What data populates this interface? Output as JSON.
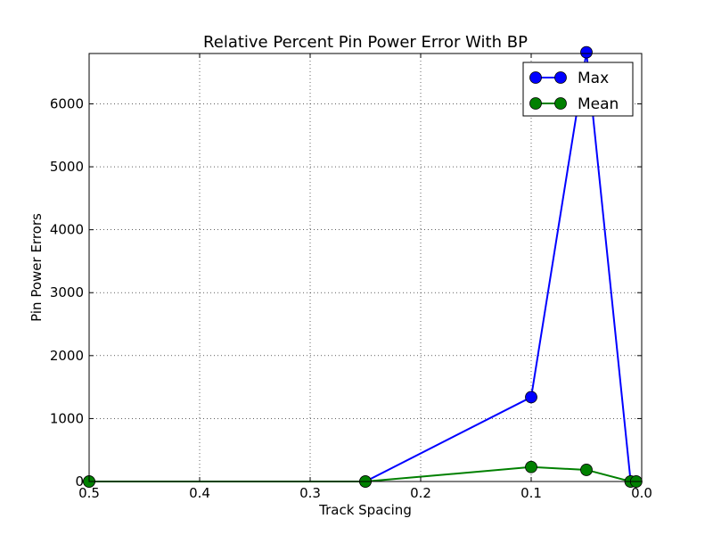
{
  "chart_data": {
    "type": "line",
    "title": "Relative Percent Pin Power Error With BP",
    "xlabel": "Track Spacing",
    "ylabel": "Pin Power Errors",
    "xlim": [
      0.5,
      0.0
    ],
    "ylim": [
      0,
      6800
    ],
    "x_inverted": true,
    "grid": true,
    "legend_position": "top-right",
    "xticks": [
      0.5,
      0.4,
      0.3,
      0.2,
      0.1,
      0.0
    ],
    "xtick_labels": [
      "0.5",
      "0.4",
      "0.3",
      "0.2",
      "0.1",
      "0.0"
    ],
    "yticks": [
      0,
      1000,
      2000,
      3000,
      4000,
      5000,
      6000
    ],
    "ytick_labels": [
      "0",
      "1000",
      "2000",
      "3000",
      "4000",
      "5000",
      "6000"
    ],
    "series": [
      {
        "name": "Max",
        "color": "#0000ff",
        "marker": "circle",
        "x": [
          0.5,
          0.25,
          0.1,
          0.05,
          0.01,
          0.005
        ],
        "y": [
          0,
          0,
          1340,
          6820,
          0,
          0
        ]
      },
      {
        "name": "Mean",
        "color": "#008000",
        "marker": "circle",
        "x": [
          0.5,
          0.25,
          0.1,
          0.05,
          0.01,
          0.005
        ],
        "y": [
          0,
          0,
          230,
          185,
          0,
          0
        ]
      }
    ]
  }
}
